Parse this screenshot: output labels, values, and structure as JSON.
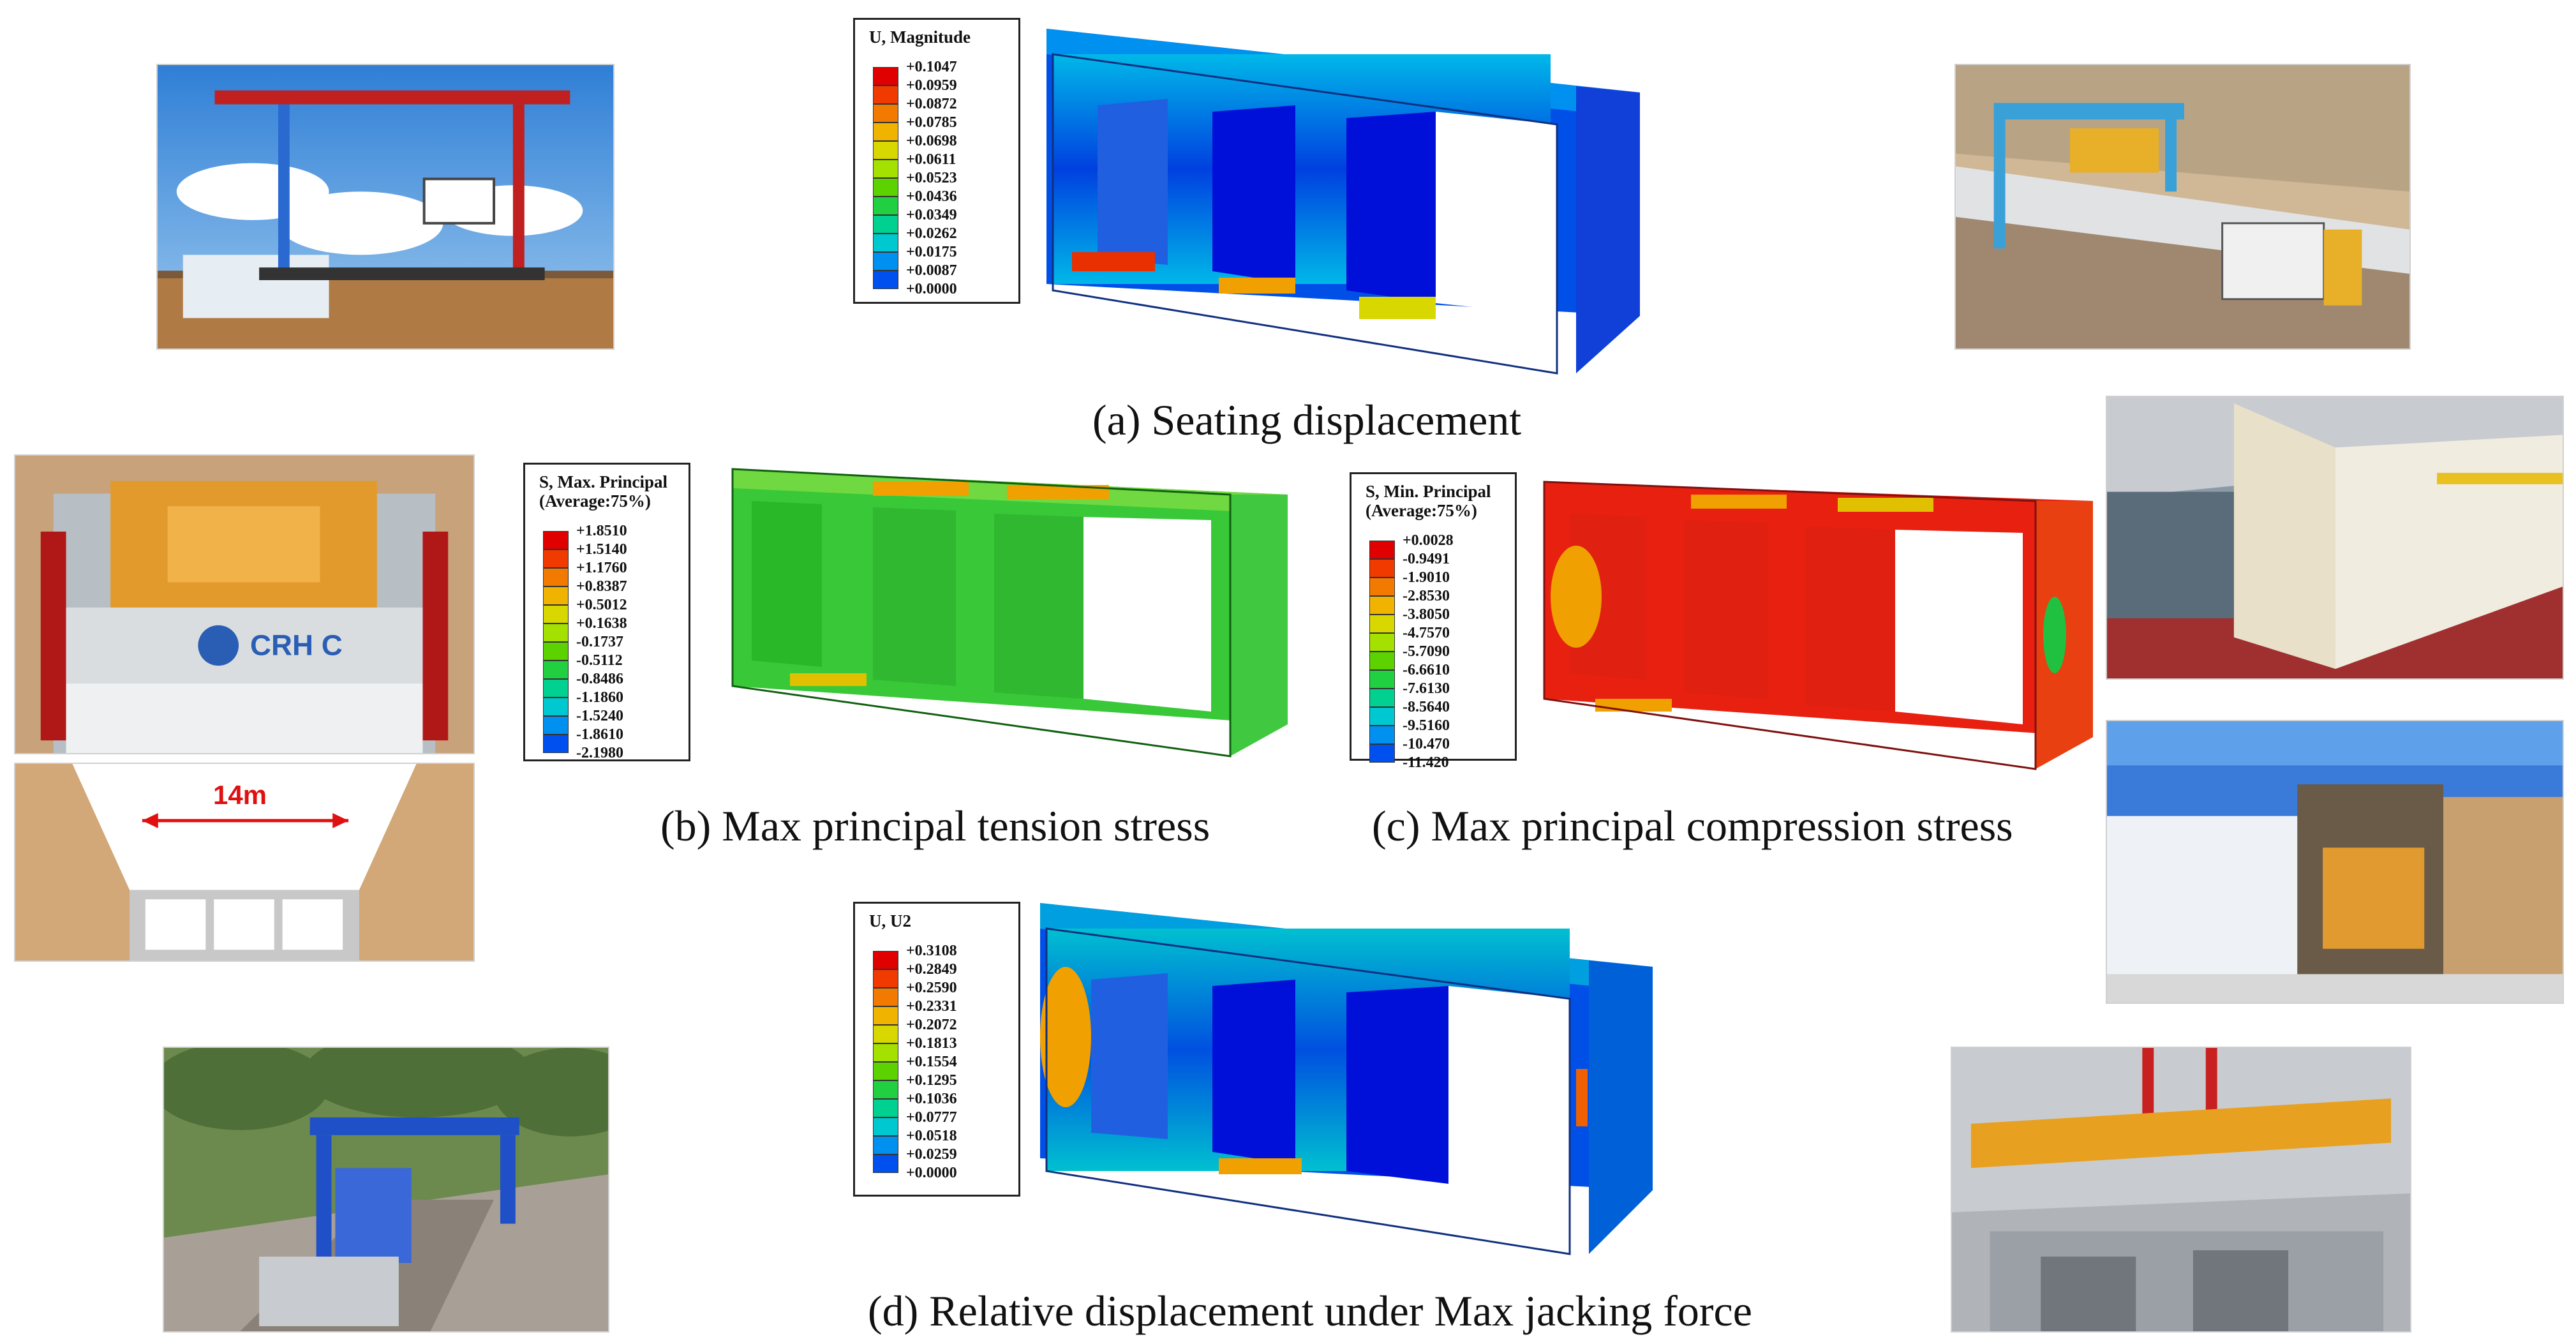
{
  "captions": {
    "a": "(a) Seating displacement",
    "b": "(b) Max principal tension stress",
    "c": "(c) Max principal compression stress",
    "d": "(d) Relative displacement under Max jacking force"
  },
  "legend_colors": [
    "#e00000",
    "#f03a00",
    "#f27a00",
    "#f0b400",
    "#d8d800",
    "#a4e000",
    "#5cd200",
    "#20d040",
    "#00d090",
    "#00c8d0",
    "#0090f0",
    "#0050f0",
    "#0010d8"
  ],
  "legends": {
    "a": {
      "title": "U, Magnitude",
      "values": [
        "+0.1047",
        "+0.0959",
        "+0.0872",
        "+0.0785",
        "+0.0698",
        "+0.0611",
        "+0.0523",
        "+0.0436",
        "+0.0349",
        "+0.0262",
        "+0.0175",
        "+0.0087",
        "+0.0000"
      ]
    },
    "b": {
      "title": "S, Max. Principal\n(Average:75%)",
      "values": [
        "+1.8510",
        "+1.5140",
        "+1.1760",
        "+0.8387",
        "+0.5012",
        "+0.1638",
        "-0.1737",
        "-0.5112",
        "-0.8486",
        "-1.1860",
        "-1.5240",
        "-1.8610",
        "-2.1980"
      ]
    },
    "c": {
      "title": "S, Min. Principal\n(Average:75%)",
      "values": [
        "+0.0028",
        "-0.9491",
        "-1.9010",
        "-2.8530",
        "-3.8050",
        "-4.7570",
        "-5.7090",
        "-6.6610",
        "-7.6130",
        "-8.5640",
        "-9.5160",
        "-10.470",
        "-11.420"
      ]
    },
    "d": {
      "title": "U, U2",
      "values": [
        "+0.3108",
        "+0.2849",
        "+0.2590",
        "+0.2331",
        "+0.2072",
        "+0.1813",
        "+0.1554",
        "+0.1295",
        "+0.1036",
        "+0.0777",
        "+0.0518",
        "+0.0259",
        "+0.0000"
      ]
    }
  },
  "photos": {
    "crhc_logo": "CRH C",
    "dimension": "14m"
  },
  "icons": {
    "fea_models": "box-culvert-3cell",
    "photos": [
      "gantry-crane-render",
      "machine-render",
      "crane-site-photo",
      "factory-photo",
      "plant-render",
      "gantry-render",
      "lifting-spreader-photo"
    ]
  }
}
